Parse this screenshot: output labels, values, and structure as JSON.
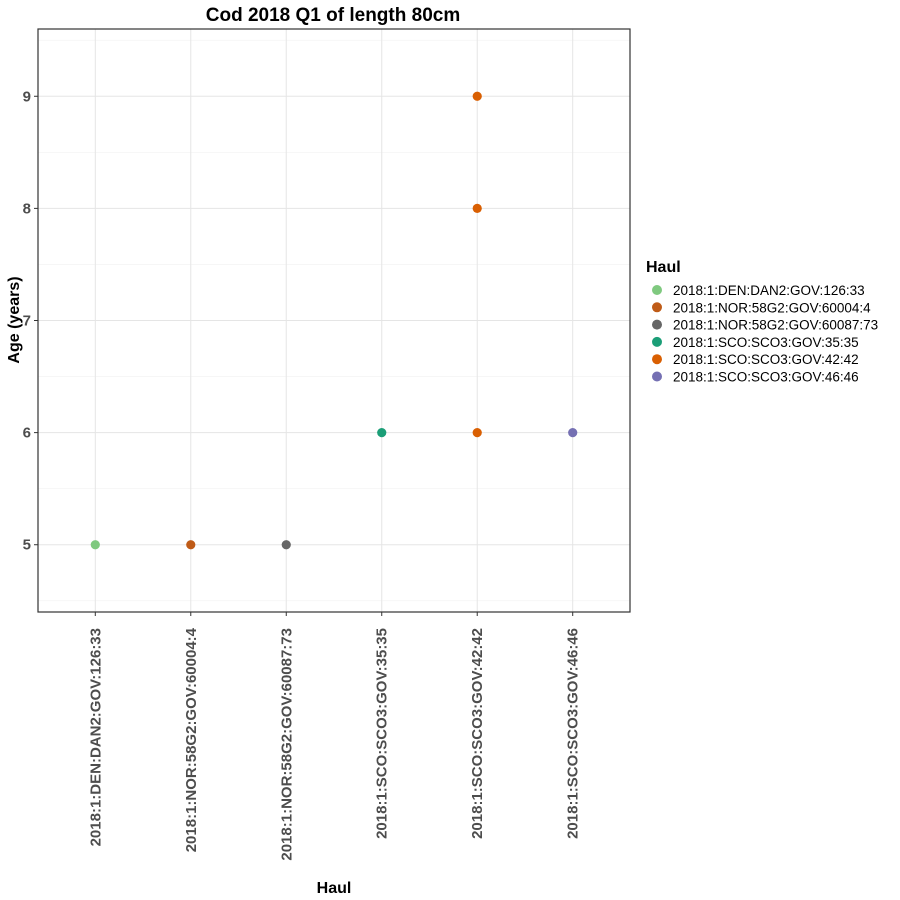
{
  "chart_data": {
    "type": "scatter",
    "title": "Cod 2018 Q1 of length 80cm",
    "xlabel": "Haul",
    "ylabel": "Age (years)",
    "categories": [
      "2018:1:DEN:DAN2:GOV:126:33",
      "2018:1:NOR:58G2:GOV:60004:4",
      "2018:1:NOR:58G2:GOV:60087:73",
      "2018:1:SCO:SCO3:GOV:35:35",
      "2018:1:SCO:SCO3:GOV:42:42",
      "2018:1:SCO:SCO3:GOV:46:46"
    ],
    "yticks": [
      5,
      6,
      7,
      8,
      9
    ],
    "ylim": [
      4.4,
      9.6
    ],
    "grid": true,
    "legend_position": "right",
    "legend_title": "Haul",
    "series": [
      {
        "name": "2018:1:DEN:DAN2:GOV:126:33",
        "color": "#7fc97f",
        "points": [
          {
            "x": "2018:1:DEN:DAN2:GOV:126:33",
            "y": 5
          }
        ]
      },
      {
        "name": "2018:1:NOR:58G2:GOV:60004:4",
        "color": "#bf5b17",
        "points": [
          {
            "x": "2018:1:NOR:58G2:GOV:60004:4",
            "y": 5
          }
        ]
      },
      {
        "name": "2018:1:NOR:58G2:GOV:60087:73",
        "color": "#666666",
        "points": [
          {
            "x": "2018:1:NOR:58G2:GOV:60087:73",
            "y": 5
          }
        ]
      },
      {
        "name": "2018:1:SCO:SCO3:GOV:35:35",
        "color": "#1b9e77",
        "points": [
          {
            "x": "2018:1:SCO:SCO3:GOV:35:35",
            "y": 6
          }
        ]
      },
      {
        "name": "2018:1:SCO:SCO3:GOV:42:42",
        "color": "#d95f02",
        "points": [
          {
            "x": "2018:1:SCO:SCO3:GOV:42:42",
            "y": 6
          },
          {
            "x": "2018:1:SCO:SCO3:GOV:42:42",
            "y": 8
          },
          {
            "x": "2018:1:SCO:SCO3:GOV:42:42",
            "y": 9
          }
        ]
      },
      {
        "name": "2018:1:SCO:SCO3:GOV:46:46",
        "color": "#7570b3",
        "points": [
          {
            "x": "2018:1:SCO:SCO3:GOV:46:46",
            "y": 6
          }
        ]
      }
    ]
  }
}
